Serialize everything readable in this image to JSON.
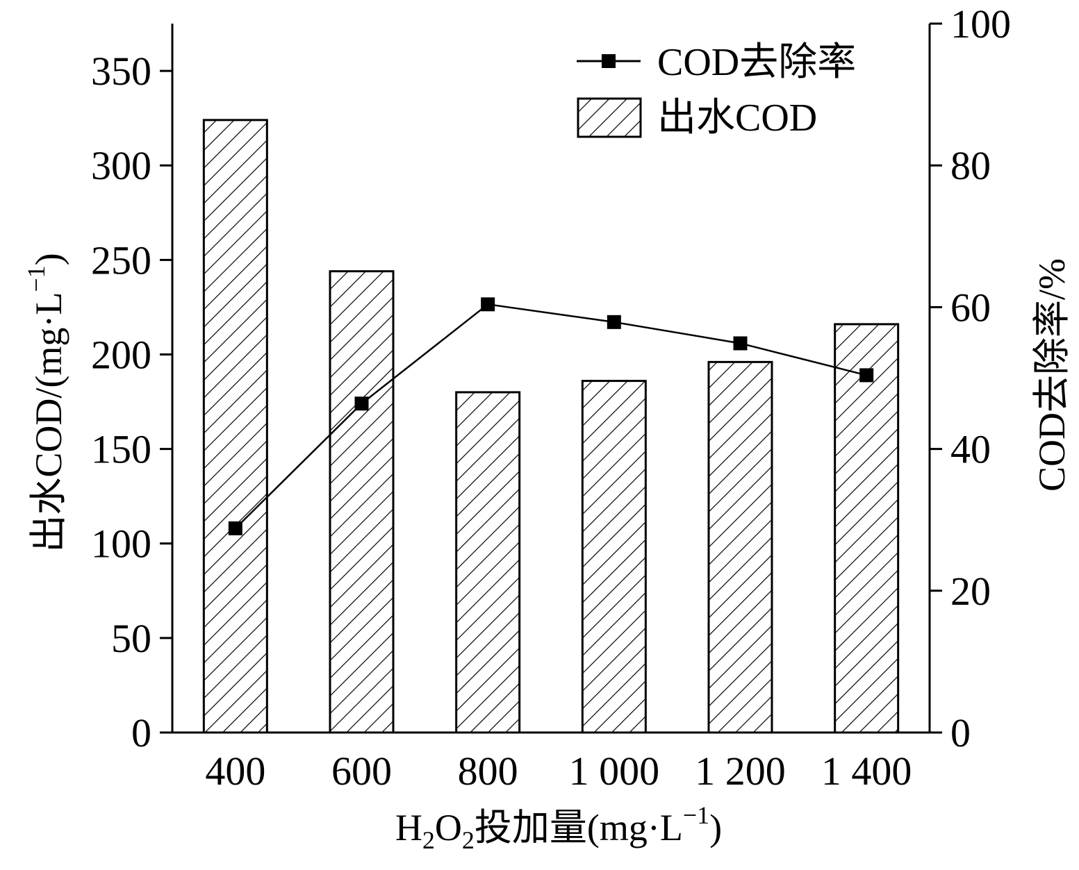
{
  "chart_data": {
    "type": "bar",
    "categories": [
      "400",
      "600",
      "800",
      "1 000",
      "1 200",
      "1 400"
    ],
    "series": [
      {
        "name": "出水COD",
        "kind": "bar",
        "axis": "left",
        "pattern": "diagonal-hatch",
        "values": [
          324,
          244,
          180,
          186,
          196,
          216
        ]
      },
      {
        "name": "COD去除率",
        "kind": "line",
        "axis": "right",
        "marker": "square",
        "values": [
          28.8,
          46.4,
          60.4,
          57.9,
          54.9,
          50.4
        ]
      }
    ],
    "xlabel": {
      "prefix": "H",
      "sub1": "2",
      "mid": "O",
      "sub2": "2",
      "main": "投加量(mg·L",
      "sup": "−1",
      "close": ")"
    },
    "ylabel_left": {
      "main": "出水COD/(mg·L",
      "sup": "−1",
      "close": ")"
    },
    "ylabel_right": "COD去除率/%",
    "ylim_left": [
      0,
      375
    ],
    "yticks_left": [
      0,
      50,
      100,
      150,
      200,
      250,
      300,
      350
    ],
    "ylim_right": [
      0,
      100
    ],
    "yticks_right": [
      0,
      20,
      40,
      60,
      80,
      100
    ],
    "grid": false,
    "legend_position": "top-right",
    "colors": {
      "line": "#000000",
      "bar_fill": "#ffffff",
      "bar_stroke": "#000000",
      "hatch": "#000000"
    }
  }
}
